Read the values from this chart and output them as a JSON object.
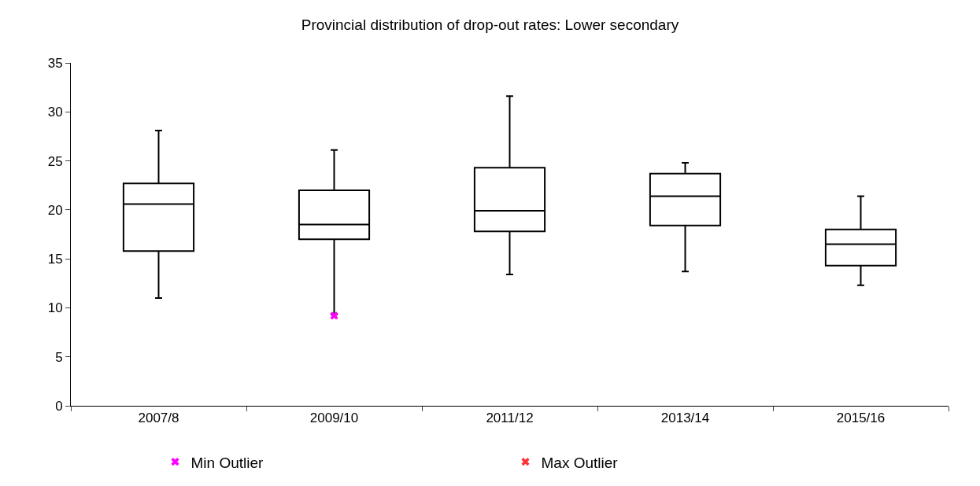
{
  "chart_data": {
    "type": "box",
    "title": "Provincial distribution of drop-out rates: Lower secondary",
    "categories": [
      "2007/8",
      "2009/10",
      "2011/12",
      "2013/14",
      "2015/16"
    ],
    "series": [
      {
        "color": "#000000",
        "boxes": [
          {
            "low": 11.0,
            "q1": 15.8,
            "median": 20.6,
            "q3": 22.7,
            "high": 28.1
          },
          {
            "low": 9.3,
            "q1": 17.0,
            "median": 18.5,
            "q3": 22.0,
            "high": 26.1
          },
          {
            "low": 13.4,
            "q1": 17.8,
            "median": 19.9,
            "q3": 24.3,
            "high": 31.6
          },
          {
            "low": 13.7,
            "q1": 18.4,
            "median": 21.4,
            "q3": 23.7,
            "high": 24.8
          },
          {
            "low": 12.3,
            "q1": 14.3,
            "median": 16.5,
            "q3": 18.0,
            "high": 21.4
          }
        ]
      },
      {
        "type": "scatter",
        "name": "Min Outlier",
        "color": "#ff00ff",
        "x": [
          "2009/10"
        ],
        "values": [
          9.2
        ]
      },
      {
        "type": "scatter",
        "name": "Max Outlier",
        "color": "#ff3333",
        "values": [
          null,
          null,
          null,
          null,
          null
        ]
      }
    ],
    "ylim": [
      0,
      35
    ],
    "yticks": [
      0,
      5,
      10,
      15,
      20,
      25,
      30,
      35
    ],
    "grid": false,
    "legend": "bottom",
    "marker": "cross"
  }
}
